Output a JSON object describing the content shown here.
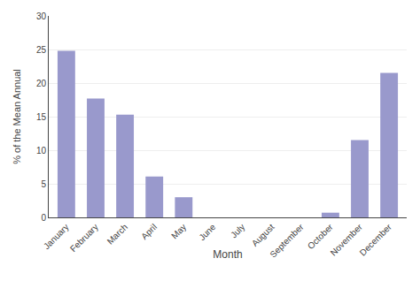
{
  "chart_data": {
    "type": "bar",
    "xlabel": "Month",
    "ylabel": "% of the Mean Annual",
    "categories": [
      "January",
      "February",
      "March",
      "April",
      "May",
      "June",
      "July",
      "August",
      "September",
      "October",
      "November",
      "December"
    ],
    "values": [
      24.8,
      17.7,
      15.3,
      6.1,
      3.0,
      0.0,
      0.0,
      0.0,
      0.0,
      0.7,
      11.5,
      21.5
    ],
    "color": "#9999cc",
    "ylim": [
      0,
      30
    ],
    "yticks": [
      0,
      5,
      10,
      15,
      20,
      25,
      30
    ],
    "grid": true
  }
}
